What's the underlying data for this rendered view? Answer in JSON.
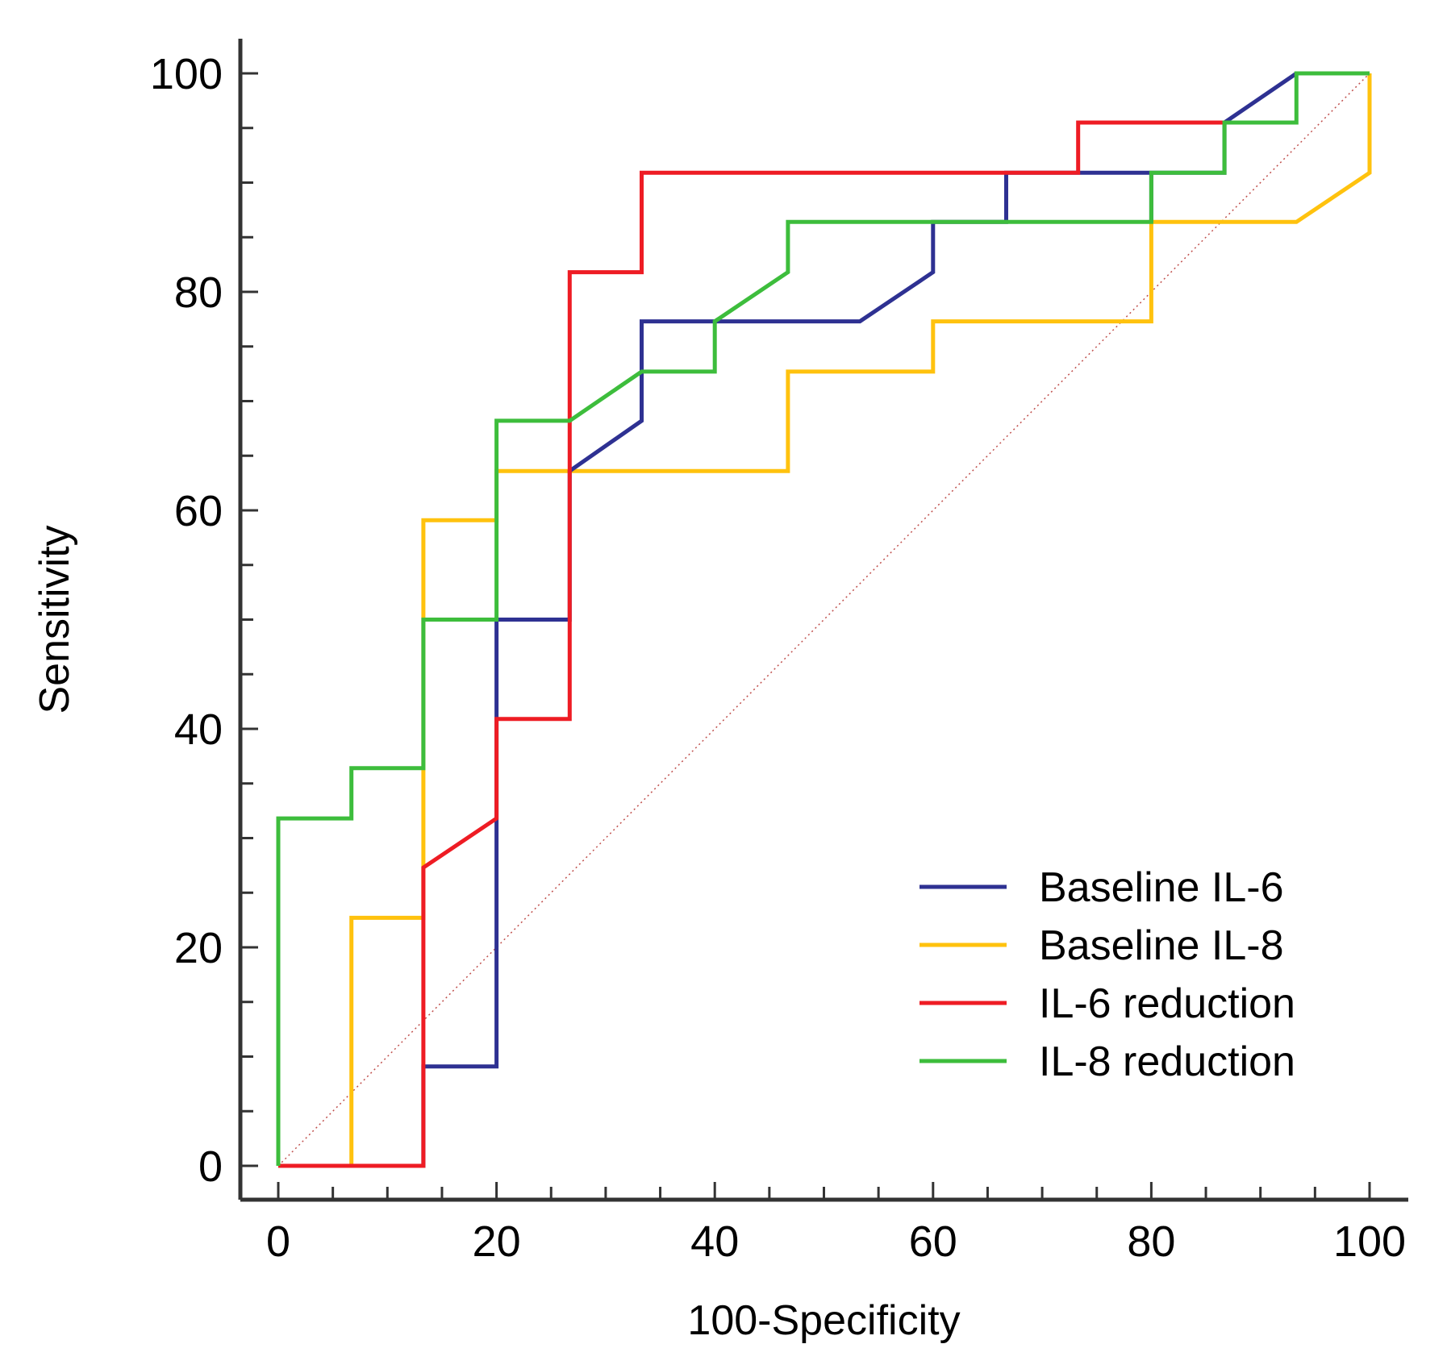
{
  "chart_data": {
    "type": "line",
    "title": "",
    "xlabel": "100-Specificity",
    "ylabel": "Sensitivity",
    "xlim": [
      0,
      100
    ],
    "ylim": [
      0,
      100
    ],
    "xticks": [
      0,
      20,
      40,
      60,
      80,
      100
    ],
    "yticks": [
      0,
      20,
      40,
      60,
      80,
      100
    ],
    "xtick_labels": [
      "0",
      "20",
      "40",
      "60",
      "80",
      "100"
    ],
    "ytick_labels": [
      "0",
      "20",
      "40",
      "60",
      "80",
      "100"
    ],
    "minor_step": 5,
    "legend_position": "bottom-right",
    "reference_line": {
      "points": [
        [
          0,
          0
        ],
        [
          100,
          100
        ]
      ],
      "color": "#c0504d"
    },
    "series": [
      {
        "name": "Baseline IL-6",
        "color": "#2e3192",
        "points": [
          [
            0,
            0
          ],
          [
            13.3,
            0
          ],
          [
            13.3,
            9.1
          ],
          [
            20,
            9.1
          ],
          [
            20,
            50
          ],
          [
            26.7,
            50
          ],
          [
            26.7,
            63.6
          ],
          [
            33.3,
            68.2
          ],
          [
            33.3,
            77.3
          ],
          [
            53.3,
            77.3
          ],
          [
            60,
            81.8
          ],
          [
            60,
            86.4
          ],
          [
            66.7,
            86.4
          ],
          [
            66.7,
            90.9
          ],
          [
            80,
            90.9
          ],
          [
            80,
            86.4
          ],
          [
            80,
            90.9
          ],
          [
            86.7,
            90.9
          ],
          [
            86.7,
            95.5
          ],
          [
            93.3,
            100
          ],
          [
            100,
            100
          ]
        ]
      },
      {
        "name": "Baseline IL-8",
        "color": "#ffc20e",
        "points": [
          [
            0,
            0
          ],
          [
            6.7,
            0
          ],
          [
            6.7,
            22.7
          ],
          [
            13.3,
            22.7
          ],
          [
            13.3,
            59.1
          ],
          [
            20,
            59.1
          ],
          [
            20,
            63.6
          ],
          [
            46.7,
            63.6
          ],
          [
            46.7,
            72.7
          ],
          [
            60,
            72.7
          ],
          [
            60,
            77.3
          ],
          [
            80,
            77.3
          ],
          [
            80,
            86.4
          ],
          [
            93.3,
            86.4
          ],
          [
            100,
            90.9
          ],
          [
            100,
            100
          ]
        ]
      },
      {
        "name": "IL-6 reduction",
        "color": "#ee1c24",
        "points": [
          [
            0,
            0
          ],
          [
            13.3,
            0
          ],
          [
            13.3,
            27.3
          ],
          [
            20,
            31.8
          ],
          [
            20,
            40.9
          ],
          [
            26.7,
            40.9
          ],
          [
            26.7,
            81.8
          ],
          [
            33.3,
            81.8
          ],
          [
            33.3,
            90.9
          ],
          [
            73.3,
            90.9
          ],
          [
            73.3,
            95.5
          ],
          [
            86.7,
            95.5
          ]
        ]
      },
      {
        "name": "IL-8 reduction",
        "color": "#3dbd3c",
        "points": [
          [
            0,
            0
          ],
          [
            0,
            31.8
          ],
          [
            6.7,
            31.8
          ],
          [
            6.7,
            36.4
          ],
          [
            13.3,
            36.4
          ],
          [
            13.3,
            50
          ],
          [
            20,
            50
          ],
          [
            20,
            68.2
          ],
          [
            26.7,
            68.2
          ],
          [
            33.3,
            72.7
          ],
          [
            40,
            72.7
          ],
          [
            40,
            77.3
          ],
          [
            46.7,
            81.8
          ],
          [
            46.7,
            86.4
          ],
          [
            80,
            86.4
          ],
          [
            80,
            90.9
          ],
          [
            86.7,
            90.9
          ],
          [
            86.7,
            95.5
          ],
          [
            93.3,
            95.5
          ],
          [
            93.3,
            100
          ],
          [
            100,
            100
          ]
        ]
      }
    ]
  }
}
